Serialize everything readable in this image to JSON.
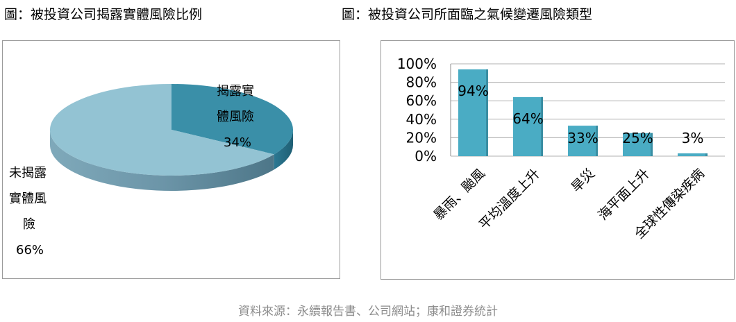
{
  "titles": {
    "left": "圖：被投資公司揭露實體風險比例",
    "right": "圖：被投資公司所面臨之氣候變遷風險類型"
  },
  "source": "資料來源：永續報告書、公司網站；康和證券統計",
  "colors": {
    "pie_disclosed": "#3a8fa8",
    "pie_undisclosed": "#93c3d3",
    "bar": "#4aacc4",
    "grid": "#b0b0b0"
  },
  "chart_data": [
    {
      "type": "pie",
      "title": "圖：被投資公司揭露實體風險比例",
      "slices": [
        {
          "name_lines": [
            "揭露實",
            "體風險"
          ],
          "label": "34%",
          "value": 34
        },
        {
          "name_lines": [
            "未揭露",
            "實體風",
            "險"
          ],
          "label": "66%",
          "value": 66
        }
      ]
    },
    {
      "type": "bar",
      "title": "圖：被投資公司所面臨之氣候變遷風險類型",
      "categories": [
        "暴雨、颱風",
        "平均溫度上升",
        "旱災",
        "海平面上升",
        "全球性傳染疾病"
      ],
      "values": [
        94,
        64,
        33,
        25,
        3
      ],
      "data_labels": [
        "94%",
        "64%",
        "33%",
        "25%",
        "3%"
      ],
      "ylim": [
        0,
        100
      ],
      "yticks": [
        "0%",
        "20%",
        "40%",
        "60%",
        "80%",
        "100%"
      ],
      "grid": true
    }
  ]
}
